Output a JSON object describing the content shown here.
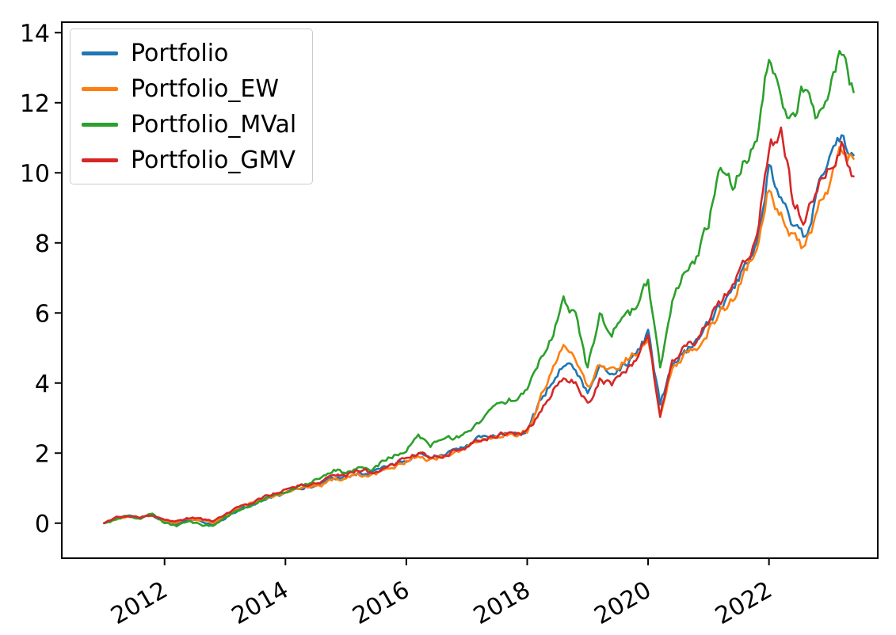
{
  "background": "#ffffff",
  "chart_data": {
    "type": "line",
    "title": "",
    "xlabel": "",
    "ylabel": "",
    "grid": false,
    "legend_position": "upper left",
    "xlim": [
      2010.3,
      2023.8
    ],
    "ylim": [
      -1.0,
      14.3
    ],
    "yticks": [
      0,
      2,
      4,
      6,
      8,
      10,
      12,
      14
    ],
    "xticks": [
      2012,
      2014,
      2016,
      2018,
      2020,
      2022
    ],
    "xtick_rotation": 30,
    "x": [
      2011.0,
      2011.2,
      2011.4,
      2011.6,
      2011.8,
      2012.0,
      2012.2,
      2012.4,
      2012.6,
      2012.8,
      2013.0,
      2013.2,
      2013.4,
      2013.6,
      2013.8,
      2014.0,
      2014.2,
      2014.4,
      2014.6,
      2014.8,
      2015.0,
      2015.2,
      2015.4,
      2015.6,
      2015.8,
      2016.0,
      2016.2,
      2016.4,
      2016.6,
      2016.8,
      2017.0,
      2017.2,
      2017.4,
      2017.6,
      2017.8,
      2018.0,
      2018.2,
      2018.4,
      2018.6,
      2018.8,
      2019.0,
      2019.2,
      2019.4,
      2019.6,
      2019.8,
      2020.0,
      2020.2,
      2020.4,
      2020.6,
      2020.8,
      2021.0,
      2021.2,
      2021.4,
      2021.6,
      2021.8,
      2022.0,
      2022.2,
      2022.4,
      2022.6,
      2022.8,
      2023.0,
      2023.2,
      2023.4
    ],
    "series": [
      {
        "name": "Portfolio",
        "color": "#1f77b4",
        "values": [
          0.0,
          0.12,
          0.18,
          0.15,
          0.22,
          0.05,
          -0.02,
          0.1,
          0.05,
          -0.05,
          0.15,
          0.35,
          0.5,
          0.62,
          0.75,
          0.85,
          0.95,
          1.05,
          1.15,
          1.3,
          1.3,
          1.45,
          1.4,
          1.55,
          1.65,
          1.8,
          2.0,
          1.85,
          1.95,
          2.05,
          2.25,
          2.4,
          2.5,
          2.6,
          2.55,
          2.7,
          3.4,
          4.0,
          4.6,
          4.4,
          3.7,
          4.4,
          4.3,
          4.5,
          4.8,
          5.4,
          3.4,
          4.5,
          4.9,
          5.1,
          5.7,
          6.2,
          6.6,
          7.4,
          8.0,
          10.2,
          9.2,
          8.4,
          8.1,
          9.4,
          10.6,
          11.1,
          10.5
        ]
      },
      {
        "name": "Portfolio_EW",
        "color": "#ff7f0e",
        "values": [
          0.0,
          0.1,
          0.2,
          0.12,
          0.25,
          0.08,
          0.0,
          0.12,
          0.08,
          0.0,
          0.2,
          0.4,
          0.55,
          0.65,
          0.8,
          0.9,
          1.0,
          1.05,
          1.1,
          1.25,
          1.25,
          1.4,
          1.35,
          1.45,
          1.6,
          1.75,
          1.95,
          1.8,
          1.9,
          2.0,
          2.2,
          2.35,
          2.45,
          2.55,
          2.5,
          2.65,
          3.5,
          4.3,
          5.0,
          4.7,
          3.8,
          4.5,
          4.4,
          4.6,
          4.9,
          5.4,
          3.0,
          4.4,
          4.8,
          5.0,
          5.5,
          6.0,
          6.4,
          7.2,
          7.9,
          9.6,
          8.8,
          8.2,
          7.8,
          9.0,
          9.6,
          10.6,
          10.4
        ]
      },
      {
        "name": "Portfolio_MVal",
        "color": "#2ca02c",
        "values": [
          0.0,
          0.12,
          0.22,
          0.1,
          0.28,
          0.0,
          -0.08,
          0.05,
          -0.05,
          -0.1,
          0.15,
          0.35,
          0.5,
          0.65,
          0.8,
          0.9,
          1.05,
          1.15,
          1.3,
          1.5,
          1.45,
          1.6,
          1.55,
          1.75,
          1.95,
          2.1,
          2.5,
          2.25,
          2.35,
          2.45,
          2.6,
          2.9,
          3.2,
          3.45,
          3.6,
          3.9,
          4.6,
          5.3,
          6.4,
          5.9,
          4.4,
          5.9,
          5.4,
          5.9,
          6.1,
          7.0,
          4.4,
          6.2,
          7.2,
          7.6,
          8.6,
          10.2,
          9.6,
          10.4,
          11.0,
          13.5,
          12.0,
          11.6,
          12.6,
          11.5,
          12.2,
          13.5,
          12.3
        ]
      },
      {
        "name": "Portfolio_GMV",
        "color": "#d62728",
        "values": [
          0.0,
          0.15,
          0.2,
          0.18,
          0.25,
          0.1,
          0.05,
          0.15,
          0.12,
          0.05,
          0.25,
          0.45,
          0.55,
          0.7,
          0.85,
          0.95,
          1.05,
          1.1,
          1.2,
          1.35,
          1.35,
          1.5,
          1.45,
          1.55,
          1.7,
          1.85,
          2.0,
          1.9,
          1.95,
          2.05,
          2.2,
          2.35,
          2.45,
          2.55,
          2.5,
          2.6,
          3.1,
          3.7,
          4.2,
          4.0,
          3.4,
          4.1,
          4.0,
          4.3,
          4.6,
          5.4,
          3.1,
          4.6,
          5.0,
          5.2,
          5.8,
          6.3,
          6.8,
          7.5,
          8.2,
          10.8,
          11.2,
          9.2,
          8.6,
          9.6,
          10.0,
          10.8,
          9.9
        ]
      }
    ]
  }
}
